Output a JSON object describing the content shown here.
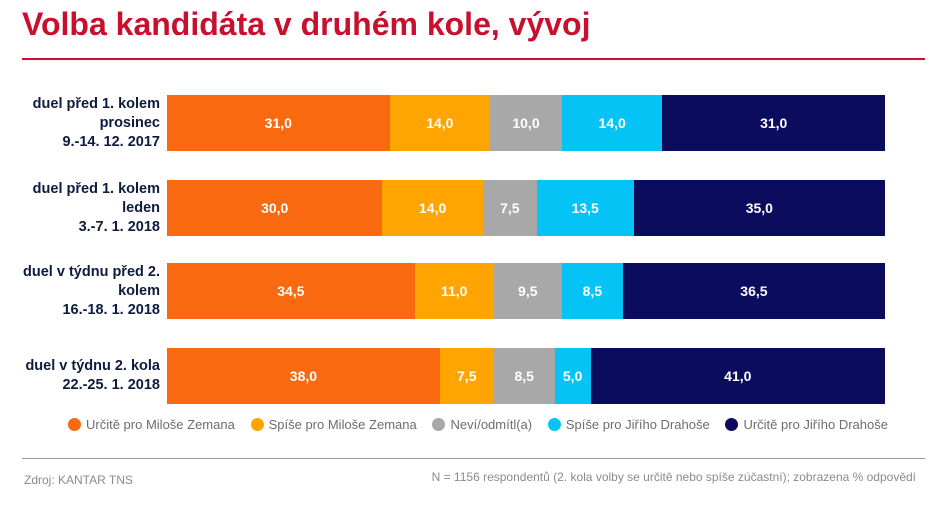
{
  "chart_data": {
    "type": "bar",
    "orientation": "horizontal",
    "stacked": true,
    "title": "Volba kandidáta v druhém kole, vývoj",
    "categories": [
      [
        "duel před 1. kolem",
        "prosinec",
        "9.-14. 12. 2017"
      ],
      [
        "duel před 1. kolem",
        "leden",
        "3.-7. 1. 2018"
      ],
      [
        "duel v týdnu před 2.",
        "kolem",
        "16.-18. 1. 2018"
      ],
      [
        "duel v týdnu 2. kola",
        "22.-25. 1. 2018"
      ]
    ],
    "series": [
      {
        "name": "Určitě pro Miloše Zemana",
        "color": "#f96a10",
        "values": [
          31.0,
          30.0,
          34.5,
          38.0
        ],
        "labels": [
          "31,0",
          "30,0",
          "34,5",
          "38,0"
        ]
      },
      {
        "name": "Spíše pro Miloše Zemana",
        "color": "#ffa400",
        "values": [
          14.0,
          14.0,
          11.0,
          7.5
        ],
        "labels": [
          "14,0",
          "14,0",
          "11,0",
          "7,5"
        ]
      },
      {
        "name": "Neví/odmítl(a)",
        "color": "#a8a8a8",
        "values": [
          10.0,
          7.5,
          9.5,
          8.5
        ],
        "labels": [
          "10,0",
          "7,5",
          "9,5",
          "8,5"
        ]
      },
      {
        "name": "Spíše pro Jiřího Drahoše",
        "color": "#06c3f6",
        "values": [
          14.0,
          13.5,
          8.5,
          5.0
        ],
        "labels": [
          "14,0",
          "13,5",
          "8,5",
          "5,0"
        ]
      },
      {
        "name": "Určitě pro Jiřího Drahoše",
        "color": "#0c0c5e",
        "values": [
          31.0,
          35.0,
          36.5,
          41.0
        ],
        "labels": [
          "31,0",
          "35,0",
          "36,5",
          "41,0"
        ]
      }
    ],
    "xlim": [
      0,
      100
    ],
    "legend_position": "bottom",
    "grid": false
  },
  "footer": {
    "source": "Zdroj: KANTAR TNS",
    "note": "N = 1156 respondentů (2. kola volby se určitě nebo spíše zúčastní); zobrazena % odpovědí"
  },
  "colors": {
    "title": "#c8102e",
    "label": "#0d1b3e"
  }
}
